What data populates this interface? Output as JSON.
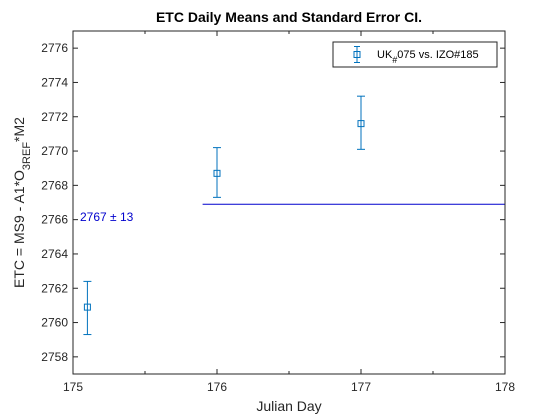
{
  "chart_data": {
    "type": "scatter",
    "title": "ETC Daily Means and Standard Error CI.",
    "xlabel": "Julian Day",
    "ylabel": {
      "main": "ETC = MS9 - A1*O",
      "sub1": "3REF",
      "tail": "*M2"
    },
    "xlim": [
      175,
      178
    ],
    "ylim": [
      2757,
      2777
    ],
    "xticks": [
      "175",
      "176",
      "177",
      "178"
    ],
    "yticks": [
      "2758",
      "2760",
      "2762",
      "2764",
      "2766",
      "2768",
      "2770",
      "2772",
      "2774",
      "2776"
    ],
    "xtick_values": [
      175,
      176,
      177,
      178
    ],
    "ytick_values": [
      2758,
      2760,
      2762,
      2764,
      2766,
      2768,
      2770,
      2772,
      2774,
      2776
    ],
    "minor_xtick_values": [
      175.5,
      176.5,
      177.5
    ],
    "grid": false,
    "legend": {
      "placement": "top-right",
      "label_pre": "UK",
      "label_sub": "#",
      "label_post": "075 vs. IZO#185"
    },
    "series": [
      {
        "name": "UK#075 vs. IZO#185",
        "marker": "square",
        "color": "#0072BD",
        "points": [
          {
            "x": 175.1,
            "y": 2760.9,
            "low": 2759.3,
            "high": 2762.4
          },
          {
            "x": 176.0,
            "y": 2768.7,
            "low": 2767.3,
            "high": 2770.2
          },
          {
            "x": 177.0,
            "y": 2771.6,
            "low": 2770.1,
            "high": 2773.2
          }
        ]
      }
    ],
    "reference_line": {
      "y": 2766.9,
      "x_start": 175.9,
      "x_end": 178,
      "color": "#0000CD",
      "label": "2767 ± 13"
    }
  }
}
